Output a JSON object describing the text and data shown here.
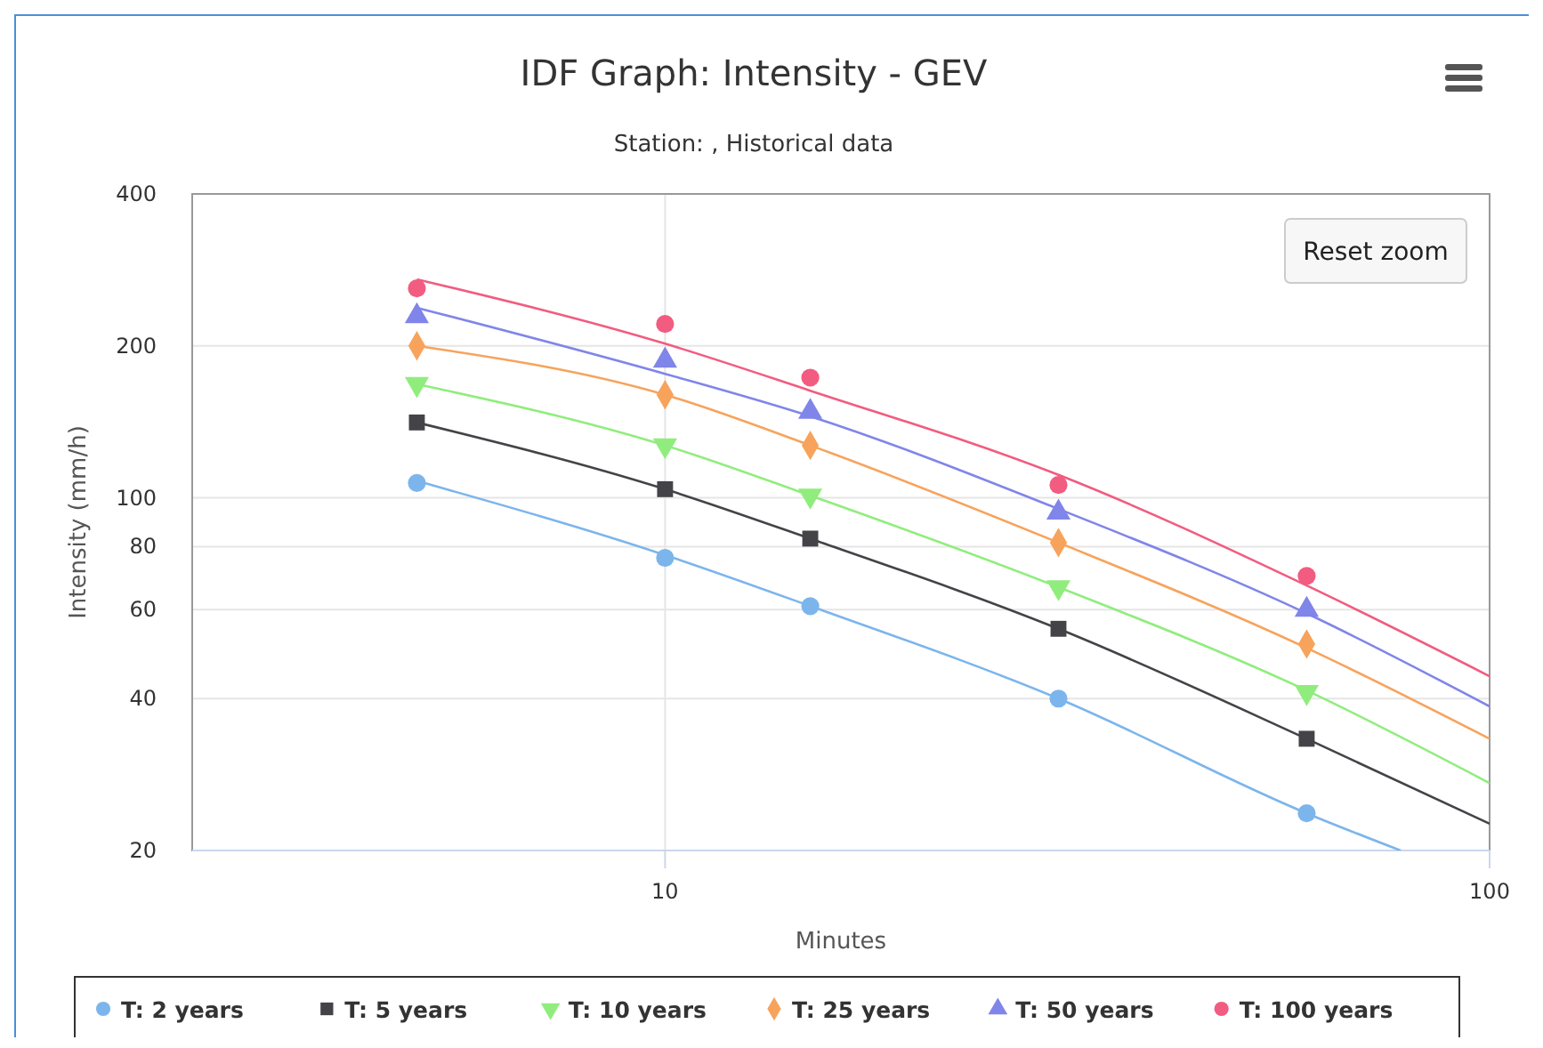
{
  "chart_data": {
    "type": "scatter",
    "title": "IDF Graph: Intensity - GEV",
    "subtitle": "Station: , Historical data",
    "xlabel": "Minutes",
    "ylabel": "Intensity (mm/h)",
    "log": "xy",
    "grid": true,
    "legend": "bottom",
    "annotations": [
      "Reset zoom"
    ],
    "xlim": [
      2.67,
      100
    ],
    "xticks": [
      10,
      100
    ],
    "ylim": [
      20,
      400
    ],
    "yticks": [
      20,
      40,
      60,
      80,
      100,
      200,
      400
    ],
    "series": [
      {
        "type": "line",
        "color": "#7cb5ec",
        "x": [
          5,
          10,
          15,
          30,
          60,
          78
        ],
        "values": [
          108,
          77,
          61,
          40,
          23.7,
          20
        ],
        "marker": "none"
      },
      {
        "type": "line",
        "color": "#434348",
        "x": [
          5,
          10,
          15,
          30,
          60,
          100
        ],
        "values": [
          141,
          104,
          83,
          55,
          33.3,
          22.6
        ],
        "marker": "none"
      },
      {
        "type": "line",
        "color": "#90ed7d",
        "x": [
          5,
          10,
          15,
          30,
          60,
          100
        ],
        "values": [
          168,
          127,
          101,
          66.5,
          41.5,
          27.2
        ],
        "marker": "none"
      },
      {
        "type": "line",
        "color": "#f7a35c",
        "x": [
          5,
          10,
          15,
          30,
          60,
          100
        ],
        "values": [
          200,
          160,
          127,
          81.5,
          50.4,
          33.3
        ],
        "marker": "none"
      },
      {
        "type": "line",
        "color": "#8085e9",
        "x": [
          5,
          10,
          15,
          30,
          60,
          100
        ],
        "values": [
          238,
          176,
          145,
          95,
          59,
          38.6
        ],
        "marker": "none"
      },
      {
        "type": "line",
        "color": "#f15c80",
        "x": [
          5,
          10,
          15,
          30,
          60,
          100
        ],
        "values": [
          271,
          202,
          163,
          111,
          67,
          44.3
        ],
        "marker": "none"
      },
      {
        "name": "T: 2 years",
        "color": "#7cb5ec",
        "marker": "circle",
        "x": [
          5,
          10,
          15,
          30,
          60
        ],
        "values": [
          107,
          76,
          61,
          40,
          23.7
        ]
      },
      {
        "name": "T: 5 years",
        "color": "#434348",
        "marker": "square",
        "x": [
          5,
          10,
          15,
          30,
          60
        ],
        "values": [
          141,
          104,
          83,
          55,
          33.3
        ]
      },
      {
        "name": "T: 10 years",
        "color": "#90ed7d",
        "marker": "triangle-down",
        "x": [
          5,
          10,
          15,
          30,
          60
        ],
        "values": [
          168,
          127,
          101,
          66.5,
          41.2
        ]
      },
      {
        "name": "T: 25 years",
        "color": "#f7a35c",
        "marker": "diamond",
        "x": [
          5,
          10,
          15,
          30,
          60
        ],
        "values": [
          200,
          160,
          127,
          81.5,
          51.3
        ]
      },
      {
        "name": "T: 50 years",
        "color": "#8085e9",
        "marker": "triangle",
        "x": [
          5,
          10,
          15,
          30,
          60
        ],
        "values": [
          229,
          187,
          148,
          93.5,
          60
        ]
      },
      {
        "name": "T: 100 years",
        "color": "#f15c80",
        "marker": "circle",
        "x": [
          5,
          10,
          15,
          30,
          60
        ],
        "values": [
          260,
          221,
          173,
          106,
          70
        ]
      }
    ]
  }
}
